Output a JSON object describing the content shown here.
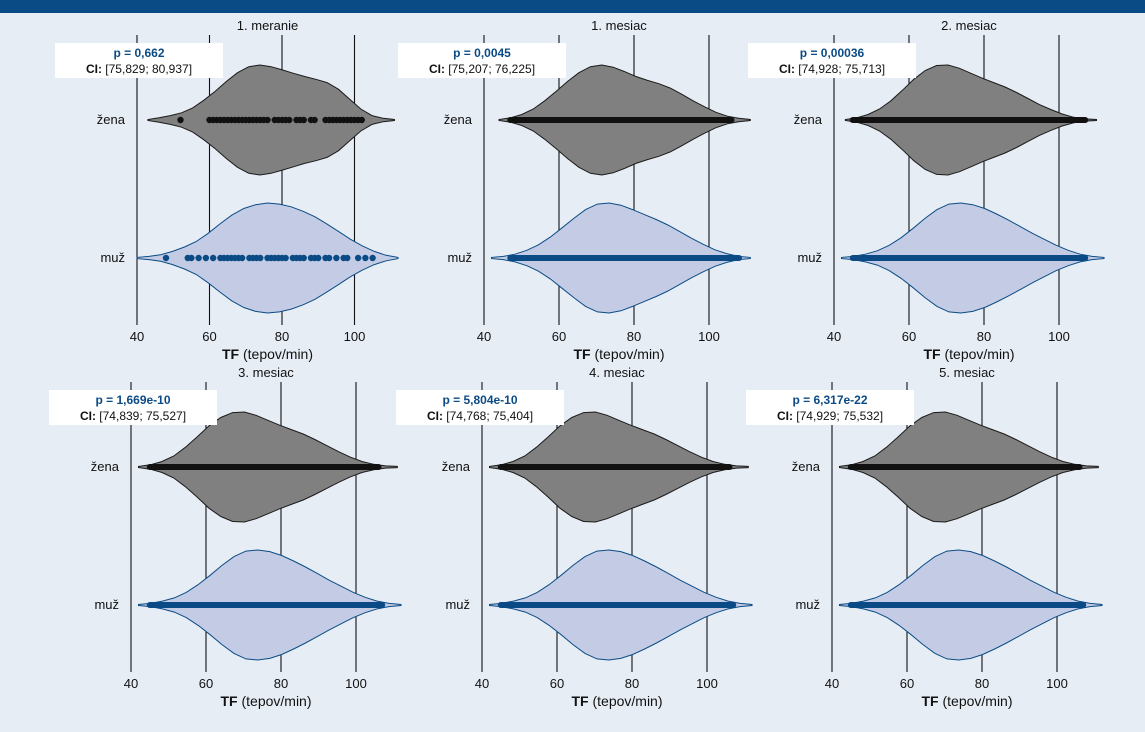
{
  "colors": {
    "header_band": "#0b4b85",
    "background": "#e7edf5",
    "zena_fill": "#808080",
    "zena_stroke": "#1a1a1a",
    "zena_points": "#111111",
    "muz_fill": "#c3cce4",
    "muz_stroke": "#0b4b85",
    "muz_points": "#0b4b85",
    "p_value_text": "#0b4b85"
  },
  "chart_data": [
    {
      "type": "violin",
      "title": "1. meranie",
      "xlabel_bold": "TF",
      "xlabel_rest": " (tepov/min)",
      "xlim": [
        40,
        112
      ],
      "xticks": [
        40,
        60,
        80,
        100
      ],
      "xtick_labels": [
        "40",
        "60",
        "80",
        "100"
      ],
      "grid_x": [
        40,
        60,
        80,
        100
      ],
      "p_value": "p = 0,662",
      "ci_label": "CI:",
      "ci": "[75,829; 80,937]",
      "series": [
        {
          "name": "žena",
          "range": [
            43,
            111
          ],
          "density": [
            0.01,
            0.04,
            0.08,
            0.13,
            0.22,
            0.36,
            0.52,
            0.7,
            0.86,
            0.97,
            1.0,
            0.97,
            0.91,
            0.85,
            0.79,
            0.74,
            0.68,
            0.56,
            0.38,
            0.2,
            0.08,
            0.03,
            0.01
          ],
          "points": [
            52,
            60,
            61,
            62,
            63,
            64,
            65,
            66,
            67,
            68,
            69,
            70,
            71,
            72,
            73,
            74,
            75,
            76,
            78,
            79,
            80,
            81,
            82,
            84,
            85,
            86,
            88,
            89,
            92,
            93,
            94,
            95,
            96,
            97,
            98,
            99,
            100,
            101,
            102
          ]
        },
        {
          "name": "muž",
          "range": [
            40,
            112
          ],
          "density": [
            0.01,
            0.03,
            0.06,
            0.12,
            0.2,
            0.3,
            0.45,
            0.62,
            0.78,
            0.9,
            0.97,
            1.0,
            0.98,
            0.93,
            0.85,
            0.75,
            0.62,
            0.48,
            0.34,
            0.22,
            0.12,
            0.05,
            0.01
          ],
          "points": [
            48,
            54,
            55,
            57,
            59,
            61,
            63,
            64,
            65,
            66,
            67,
            68,
            69,
            71,
            72,
            73,
            74,
            76,
            77,
            78,
            79,
            80,
            81,
            83,
            84,
            85,
            86,
            88,
            89,
            90,
            92,
            93,
            95,
            97,
            98,
            101,
            103,
            105
          ]
        }
      ]
    },
    {
      "type": "violin",
      "title": "1. mesiac",
      "xlabel_bold": "TF",
      "xlabel_rest": " (tepov/min)",
      "xlim": [
        40,
        112
      ],
      "xticks": [
        40,
        60,
        80,
        100
      ],
      "xtick_labels": [
        "40",
        "60",
        "80",
        "100"
      ],
      "grid_x": [
        40,
        60,
        80,
        100
      ],
      "p_value": "p = 0,0045",
      "ci_label": "CI:",
      "ci": "[75,207; 76,225]",
      "series": [
        {
          "name": "žena",
          "range": [
            44,
            111
          ],
          "density": [
            0.01,
            0.04,
            0.1,
            0.2,
            0.35,
            0.52,
            0.7,
            0.86,
            0.97,
            1.0,
            0.96,
            0.88,
            0.79,
            0.72,
            0.66,
            0.58,
            0.47,
            0.35,
            0.24,
            0.14,
            0.07,
            0.03,
            0.01
          ],
          "points_dense": [
            47,
            106
          ]
        },
        {
          "name": "muž",
          "range": [
            42,
            111
          ],
          "density": [
            0.01,
            0.03,
            0.07,
            0.14,
            0.24,
            0.38,
            0.55,
            0.72,
            0.88,
            0.98,
            1.0,
            0.96,
            0.88,
            0.79,
            0.7,
            0.6,
            0.48,
            0.36,
            0.25,
            0.15,
            0.08,
            0.03,
            0.01
          ],
          "points_dense": [
            47,
            108
          ]
        }
      ]
    },
    {
      "type": "violin",
      "title": "2. mesiac",
      "xlabel_bold": "TF",
      "xlabel_rest": " (tepov/min)",
      "xlim": [
        40,
        112
      ],
      "xticks": [
        40,
        60,
        80,
        100
      ],
      "xtick_labels": [
        "40",
        "60",
        "80",
        "100"
      ],
      "grid_x": [
        40,
        60,
        80,
        100
      ],
      "p_value": "p = 0,00036",
      "ci_label": "CI:",
      "ci": "[74,928; 75,713]",
      "series": [
        {
          "name": "žena",
          "range": [
            43,
            110
          ],
          "density": [
            0.01,
            0.04,
            0.1,
            0.2,
            0.35,
            0.54,
            0.74,
            0.9,
            0.99,
            1.0,
            0.94,
            0.85,
            0.76,
            0.68,
            0.6,
            0.5,
            0.39,
            0.28,
            0.19,
            0.11,
            0.05,
            0.02,
            0.01
          ],
          "points_dense": [
            45,
            107
          ]
        },
        {
          "name": "muž",
          "range": [
            42,
            112
          ],
          "density": [
            0.01,
            0.03,
            0.07,
            0.13,
            0.23,
            0.37,
            0.54,
            0.72,
            0.88,
            0.98,
            1.0,
            0.97,
            0.9,
            0.8,
            0.69,
            0.57,
            0.45,
            0.34,
            0.23,
            0.14,
            0.07,
            0.03,
            0.01
          ],
          "points_dense": [
            45,
            107
          ]
        }
      ]
    },
    {
      "type": "violin",
      "title": "3. mesiac",
      "xlabel_bold": "TF",
      "xlabel_rest": " (tepov/min)",
      "xlim": [
        40,
        112
      ],
      "xticks": [
        40,
        60,
        80,
        100
      ],
      "xtick_labels": [
        "40",
        "60",
        "80",
        "100"
      ],
      "grid_x": [
        40,
        60,
        80,
        100
      ],
      "p_value": "p = 1,669e-10",
      "ci_label": "CI:",
      "ci": "[74,839; 75,527]",
      "series": [
        {
          "name": "žena",
          "range": [
            42,
            111
          ],
          "density": [
            0.01,
            0.04,
            0.1,
            0.2,
            0.36,
            0.55,
            0.75,
            0.9,
            0.99,
            1.0,
            0.94,
            0.85,
            0.76,
            0.68,
            0.6,
            0.5,
            0.39,
            0.28,
            0.18,
            0.1,
            0.05,
            0.02,
            0.01
          ],
          "points_dense": [
            45,
            106
          ]
        },
        {
          "name": "muž",
          "range": [
            42,
            112
          ],
          "density": [
            0.01,
            0.03,
            0.07,
            0.13,
            0.23,
            0.37,
            0.54,
            0.72,
            0.88,
            0.98,
            1.0,
            0.97,
            0.9,
            0.8,
            0.69,
            0.57,
            0.45,
            0.34,
            0.23,
            0.14,
            0.07,
            0.03,
            0.01
          ],
          "points_dense": [
            45,
            107
          ]
        }
      ]
    },
    {
      "type": "violin",
      "title": "4. mesiac",
      "xlabel_bold": "TF",
      "xlabel_rest": " (tepov/min)",
      "xlim": [
        40,
        112
      ],
      "xticks": [
        40,
        60,
        80,
        100
      ],
      "xtick_labels": [
        "40",
        "60",
        "80",
        "100"
      ],
      "grid_x": [
        40,
        60,
        80,
        100
      ],
      "p_value": "p = 5,804e-10",
      "ci_label": "CI:",
      "ci": "[74,768; 75,404]",
      "series": [
        {
          "name": "žena",
          "range": [
            42,
            111
          ],
          "density": [
            0.01,
            0.04,
            0.1,
            0.2,
            0.36,
            0.55,
            0.75,
            0.9,
            0.99,
            1.0,
            0.94,
            0.85,
            0.76,
            0.68,
            0.6,
            0.5,
            0.39,
            0.28,
            0.18,
            0.1,
            0.05,
            0.02,
            0.01
          ],
          "points_dense": [
            45,
            106
          ]
        },
        {
          "name": "muž",
          "range": [
            42,
            112
          ],
          "density": [
            0.01,
            0.03,
            0.07,
            0.13,
            0.23,
            0.37,
            0.54,
            0.72,
            0.88,
            0.98,
            1.0,
            0.97,
            0.9,
            0.8,
            0.69,
            0.57,
            0.45,
            0.34,
            0.23,
            0.14,
            0.07,
            0.03,
            0.01
          ],
          "points_dense": [
            45,
            107
          ]
        }
      ]
    },
    {
      "type": "violin",
      "title": "5. mesiac",
      "xlabel_bold": "TF",
      "xlabel_rest": " (tepov/min)",
      "xlim": [
        40,
        112
      ],
      "xticks": [
        40,
        60,
        80,
        100
      ],
      "xtick_labels": [
        "40",
        "60",
        "80",
        "100"
      ],
      "grid_x": [
        40,
        60,
        80,
        100
      ],
      "p_value": "p = 6,317e-22",
      "ci_label": "CI:",
      "ci": "[74,929; 75,532]",
      "series": [
        {
          "name": "žena",
          "range": [
            42,
            111
          ],
          "density": [
            0.01,
            0.04,
            0.1,
            0.2,
            0.36,
            0.55,
            0.75,
            0.9,
            0.99,
            1.0,
            0.94,
            0.85,
            0.76,
            0.68,
            0.6,
            0.5,
            0.39,
            0.28,
            0.18,
            0.1,
            0.05,
            0.02,
            0.01
          ],
          "points_dense": [
            45,
            106
          ]
        },
        {
          "name": "muž",
          "range": [
            42,
            112
          ],
          "density": [
            0.01,
            0.03,
            0.07,
            0.13,
            0.23,
            0.37,
            0.54,
            0.72,
            0.88,
            0.98,
            1.0,
            0.97,
            0.9,
            0.8,
            0.69,
            0.57,
            0.45,
            0.34,
            0.23,
            0.14,
            0.07,
            0.03,
            0.01
          ],
          "points_dense": [
            45,
            107
          ]
        }
      ]
    }
  ]
}
